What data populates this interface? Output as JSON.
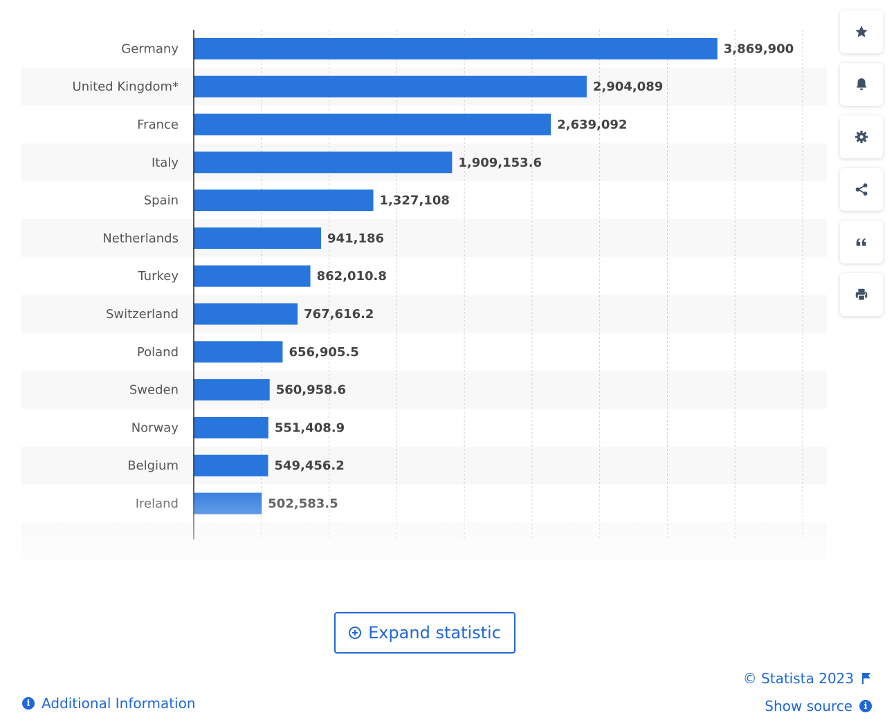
{
  "chart_data": {
    "type": "bar",
    "orientation": "horizontal",
    "categories": [
      "Germany",
      "United Kingdom*",
      "France",
      "Italy",
      "Spain",
      "Netherlands",
      "Turkey",
      "Switzerland",
      "Poland",
      "Sweden",
      "Norway",
      "Belgium",
      "Ireland"
    ],
    "values": [
      3869900,
      2904089,
      2639092,
      1909153.6,
      1327108,
      941186,
      862010.8,
      767616.2,
      656905.5,
      560958.6,
      551408.9,
      549456.2,
      502583.5
    ],
    "value_labels": [
      "3,869,900",
      "2,904,089",
      "2,639,092",
      "1,909,153.6",
      "1,327,108",
      "941,186",
      "862,010.8",
      "767,616.2",
      "656,905.5",
      "560,958.6",
      "551,408.9",
      "549,456.2",
      "502,583.5"
    ],
    "xlim": [
      0,
      4500000
    ],
    "grid": true,
    "bar_color": "#2876dd"
  },
  "sidebar": {
    "icons": [
      "star-icon",
      "bell-icon",
      "gear-icon",
      "share-icon",
      "quote-icon",
      "print-icon"
    ]
  },
  "expand_label": "Expand statistic",
  "footer": {
    "additional_info": "Additional Information",
    "copyright": "© Statista 2023",
    "show_source": "Show source"
  },
  "colors": {
    "accent": "#1f68d6",
    "icon": "#3f5166"
  }
}
